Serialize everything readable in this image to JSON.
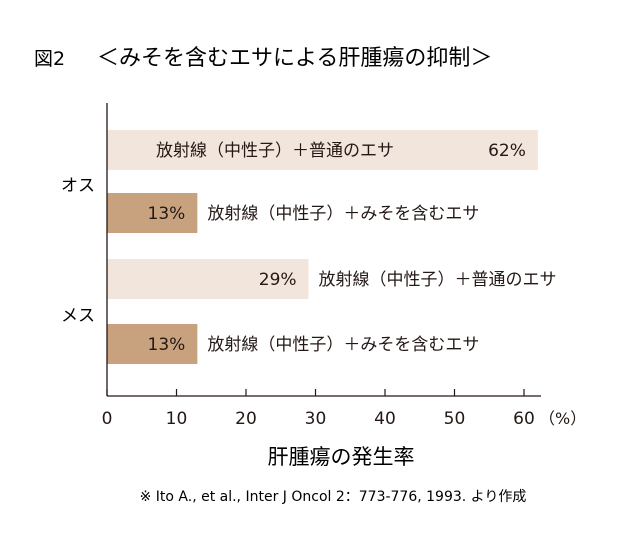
{
  "figure_label": "図2",
  "title": "＜みそを含むエサによる肝腫瘍の抑制＞",
  "source_note": "※ Ito A., et al., Inter J Oncol 2：773-776, 1993. より作成",
  "colors": {
    "light_bar": "#f1e5dc",
    "dark_bar": "#c8a27e",
    "text": "#231815",
    "axis": "#231815"
  },
  "chart_data": {
    "type": "bar",
    "orientation": "horizontal",
    "xlabel": "肝腫瘍の発生率",
    "unit": "（%）",
    "xlim": [
      0,
      60
    ],
    "xticks": [
      0,
      10,
      20,
      30,
      40,
      50,
      60
    ],
    "grid": false,
    "groups": [
      "オス",
      "メス"
    ],
    "bars": [
      {
        "group": "オス",
        "label": "放射線（中性子）＋普通のエサ",
        "value": 62,
        "value_text": "62%",
        "color": "light"
      },
      {
        "group": "オス",
        "label": "放射線（中性子）＋みそを含むエサ",
        "value": 13,
        "value_text": "13%",
        "color": "dark"
      },
      {
        "group": "メス",
        "label": "放射線（中性子）＋普通のエサ",
        "value": 29,
        "value_text": "29%",
        "color": "light"
      },
      {
        "group": "メス",
        "label": "放射線（中性子）＋みそを含むエサ",
        "value": 13,
        "value_text": "13%",
        "color": "dark"
      }
    ]
  }
}
